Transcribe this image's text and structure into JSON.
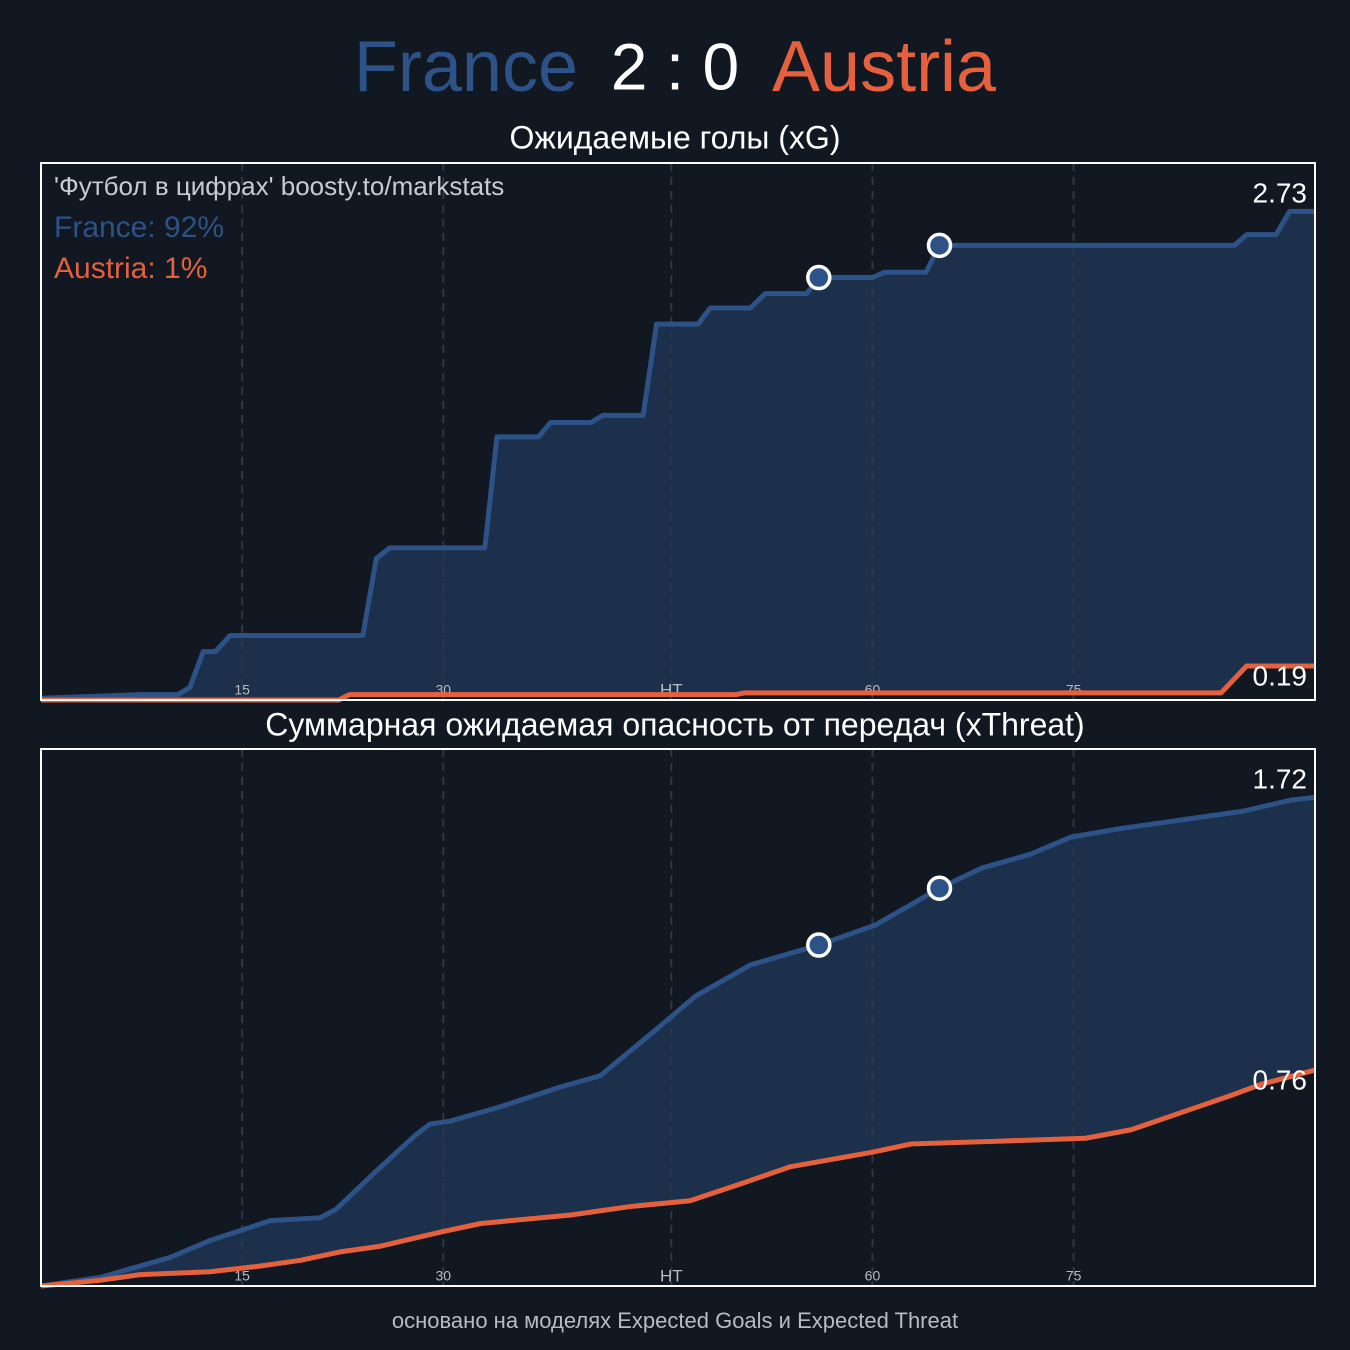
{
  "header": {
    "home": "France",
    "score": "2 : 0",
    "away": "Austria"
  },
  "footer": "основано на моделях Expected Goals и Expected Threat",
  "chart_data": [
    {
      "type": "line",
      "title": "Ожидаемые голы (xG)",
      "annotations": [
        "'Футбол в цифрах' boosty.to/markstats",
        "France: 92%",
        "Austria: 1%"
      ],
      "xlim": [
        0,
        95
      ],
      "ylim": [
        0,
        3
      ],
      "xticks": [
        15,
        30,
        {
          "value": 47,
          "label": "HT"
        },
        {
          "value": 62,
          "label": "60"
        },
        {
          "value": 77,
          "label": "75"
        }
      ],
      "grid": true,
      "series": [
        {
          "name": "France",
          "color": "#2d5287",
          "x": [
            0,
            7.4,
            10.2,
            11.1,
            12.1,
            13,
            14.1,
            24,
            25,
            26,
            33.1,
            34,
            37.1,
            38,
            41,
            41.9,
            44.9,
            45.9,
            49,
            49.9,
            52.9,
            54,
            57.1,
            58,
            62,
            62.9,
            66,
            67,
            89,
            89.9,
            92.1,
            93.1,
            95
          ],
          "values": [
            0.01,
            0.03,
            0.03,
            0.07,
            0.27,
            0.27,
            0.36,
            0.36,
            0.79,
            0.85,
            0.85,
            1.47,
            1.47,
            1.55,
            1.55,
            1.59,
            1.59,
            2.1,
            2.1,
            2.19,
            2.19,
            2.27,
            2.27,
            2.36,
            2.36,
            2.39,
            2.39,
            2.54,
            2.54,
            2.6,
            2.6,
            2.73,
            2.73
          ]
        },
        {
          "name": "Austria",
          "color": "#e5603c",
          "x": [
            0,
            22.2,
            23,
            51.8,
            52.5,
            88,
            89.9,
            95
          ],
          "values": [
            0,
            0,
            0.03,
            0.03,
            0.04,
            0.04,
            0.19,
            0.19
          ]
        }
      ],
      "goals": {
        "x": [
          58,
          67
        ],
        "values": [
          2.36,
          2.54
        ]
      }
    },
    {
      "type": "line",
      "title": "Суммарная ожидаемая опасность от передач (xThreat)",
      "xlim": [
        0,
        95
      ],
      "ylim": [
        0,
        1.89
      ],
      "xticks": [
        15,
        30,
        {
          "value": 47,
          "label": "HT"
        },
        {
          "value": 62,
          "label": "60"
        },
        {
          "value": 77,
          "label": "75"
        }
      ],
      "grid": true,
      "series": [
        {
          "name": "France",
          "color": "#2d5287",
          "x": [
            0,
            4.4,
            9.6,
            12.6,
            17.1,
            20.8,
            22,
            24.9,
            27.9,
            29,
            30.5,
            34.2,
            38.7,
            41.7,
            45.8,
            48.8,
            52.9,
            58,
            62.2,
            67,
            70.1,
            73.8,
            76.8,
            80.5,
            85,
            89.5,
            93.2,
            95
          ],
          "values": [
            0,
            0.03,
            0.1,
            0.16,
            0.23,
            0.24,
            0.27,
            0.4,
            0.53,
            0.57,
            0.58,
            0.63,
            0.7,
            0.74,
            0.9,
            1.02,
            1.13,
            1.2,
            1.27,
            1.4,
            1.47,
            1.52,
            1.58,
            1.61,
            1.64,
            1.67,
            1.71,
            1.72
          ]
        },
        {
          "name": "Austria",
          "color": "#e5603c",
          "x": [
            0,
            4.4,
            7.4,
            12.6,
            16.3,
            19.3,
            22.3,
            25.3,
            29.8,
            32.8,
            39.5,
            44,
            48.4,
            52.2,
            55.9,
            61.9,
            64.9,
            71.6,
            77.9,
            81.3,
            85,
            88.7,
            91,
            95
          ],
          "values": [
            0,
            0.02,
            0.04,
            0.05,
            0.07,
            0.09,
            0.12,
            0.14,
            0.19,
            0.22,
            0.25,
            0.28,
            0.3,
            0.36,
            0.42,
            0.47,
            0.5,
            0.51,
            0.52,
            0.55,
            0.61,
            0.67,
            0.71,
            0.76
          ]
        }
      ],
      "goals": {
        "x": [
          58,
          67
        ],
        "values": [
          1.2,
          1.4
        ]
      }
    }
  ]
}
